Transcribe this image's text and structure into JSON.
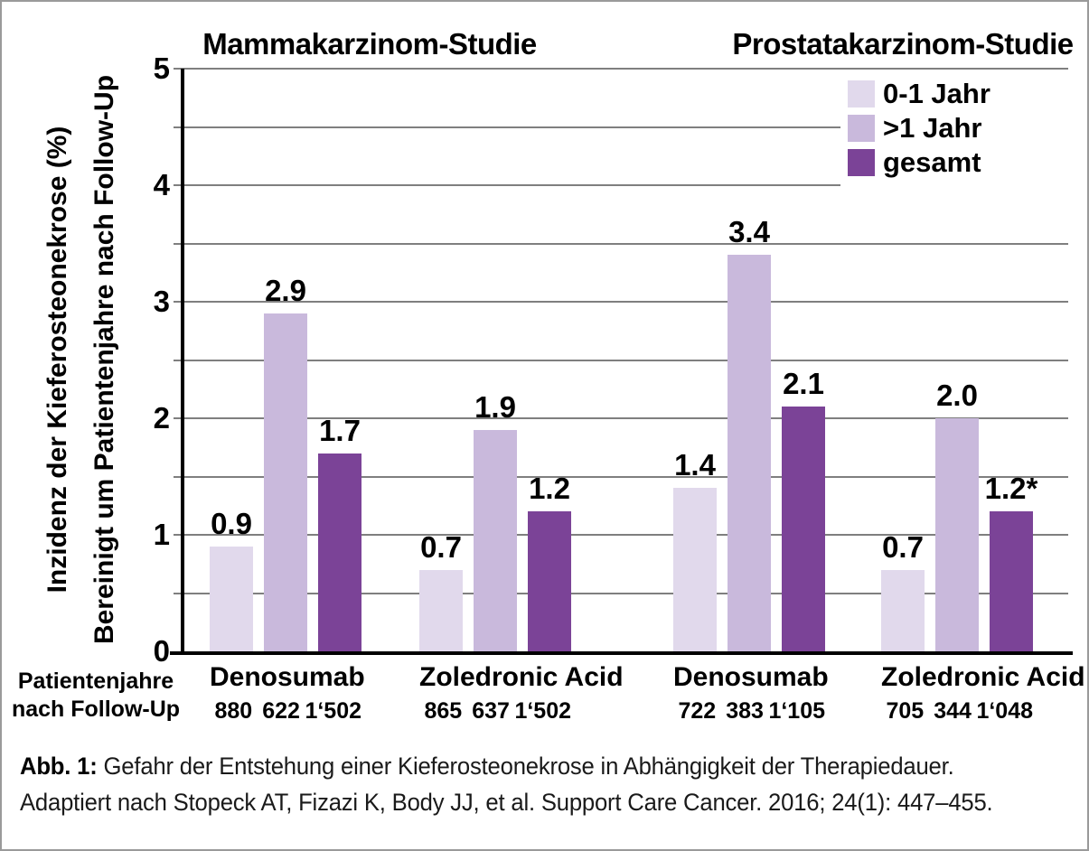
{
  "chart_data": {
    "type": "bar",
    "panel_titles": [
      "Mammakarzinom-Studie",
      "Prostatakarzinom-Studie"
    ],
    "ylabel_line1": "Inzidenz der Kieferosteonekrose (%)",
    "ylabel_line2": "Bereinigt um Patientenjahre nach Follow-Up",
    "ylim": [
      0,
      5
    ],
    "ytick_labels": [
      "0",
      "1",
      "2",
      "3",
      "4",
      "5"
    ],
    "gridline_step": 0.5,
    "grid": true,
    "legend_position": "top-right",
    "series": [
      {
        "name": "0-1 Jahr",
        "color": "#e1d9ec",
        "values": [
          0.9,
          0.7,
          1.4,
          0.7
        ]
      },
      {
        "name": ">1 Jahr",
        "color": "#c9b9dc",
        "values": [
          2.9,
          1.9,
          3.4,
          2.0
        ]
      },
      {
        "name": "gesamt",
        "color": "#7b4397",
        "values": [
          1.7,
          1.2,
          2.1,
          1.2
        ]
      }
    ],
    "bar_labels": [
      [
        "0.9",
        "2.9",
        "1.7"
      ],
      [
        "0.7",
        "1.9",
        "1.2"
      ],
      [
        "1.4",
        "3.4",
        "2.1"
      ],
      [
        "0.7",
        "2.0",
        "1.2*"
      ]
    ],
    "groups": [
      {
        "label": "Denosumab",
        "panel": 0,
        "patient_years": [
          "880",
          "622",
          "1‘502"
        ]
      },
      {
        "label": "Zoledronic Acid",
        "panel": 0,
        "patient_years": [
          "865",
          "637",
          "1‘502"
        ]
      },
      {
        "label": "Denosumab",
        "panel": 1,
        "patient_years": [
          "722",
          "383",
          "1‘105"
        ]
      },
      {
        "label": "Zoledronic Acid",
        "panel": 1,
        "patient_years": [
          "705",
          "344",
          "1‘048"
        ]
      }
    ],
    "row_header": "Patientenjahre nach Follow-Up"
  },
  "caption": {
    "label": "Abb. 1:",
    "line1": "Gefahr der Entstehung einer Kieferosteonekrose in Abhängigkeit der Therapiedauer.",
    "line2": "Adaptiert nach Stopeck AT, Fizazi K, Body JJ, et al. Support Care Cancer. 2016; 24(1): 447–455."
  }
}
